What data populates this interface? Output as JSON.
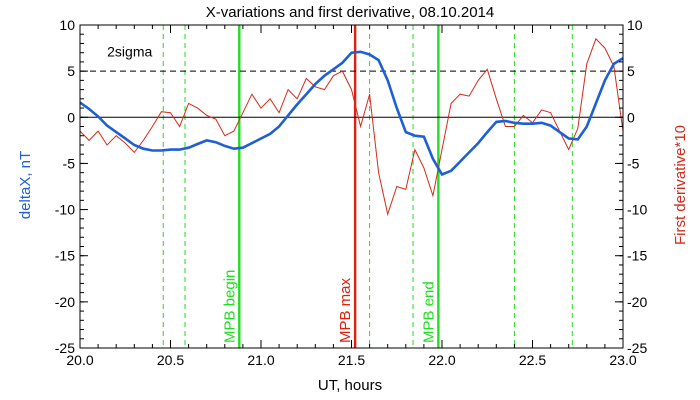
{
  "chart_data": {
    "type": "line",
    "title": "X-variations and first derivative, 08.10.2014",
    "xlabel": "UT, hours",
    "ylabel_left": "deltaX, nT",
    "ylabel_right": "First derivative*10",
    "xlim": [
      20.0,
      23.0
    ],
    "ylim": [
      -25,
      10
    ],
    "x_ticks": [
      "20.0",
      "20.5",
      "21.0",
      "21.5",
      "22.0",
      "22.5",
      "23.0"
    ],
    "y_ticks": [
      "-25",
      "-20",
      "-15",
      "-10",
      "-5",
      "0",
      "5",
      "10"
    ],
    "grid": false,
    "sigma_label": "2sigma",
    "sigma_level": 5,
    "zero_level": 0,
    "colors": {
      "deltaX": "#1e5fd6",
      "derivative": "#d42a1a",
      "mpb_green": "#22dd22",
      "mpb_red": "#e02010"
    },
    "series": [
      {
        "key": "deltaX",
        "axis": "left",
        "x": [
          20.0,
          20.05,
          20.1,
          20.15,
          20.2,
          20.25,
          20.3,
          20.35,
          20.4,
          20.45,
          20.5,
          20.55,
          20.6,
          20.65,
          20.7,
          20.75,
          20.8,
          20.85,
          20.9,
          20.95,
          21.0,
          21.05,
          21.1,
          21.15,
          21.2,
          21.25,
          21.3,
          21.35,
          21.4,
          21.45,
          21.5,
          21.55,
          21.6,
          21.65,
          21.7,
          21.75,
          21.8,
          21.85,
          21.9,
          21.95,
          22.0,
          22.05,
          22.1,
          22.15,
          22.2,
          22.25,
          22.3,
          22.35,
          22.4,
          22.45,
          22.5,
          22.55,
          22.6,
          22.65,
          22.7,
          22.75,
          22.8,
          22.85,
          22.9,
          22.95,
          23.0
        ],
        "y": [
          1.6,
          0.9,
          0.1,
          -0.9,
          -1.6,
          -2.3,
          -3.0,
          -3.4,
          -3.6,
          -3.6,
          -3.5,
          -3.5,
          -3.3,
          -2.9,
          -2.5,
          -2.7,
          -3.1,
          -3.4,
          -3.3,
          -2.8,
          -2.3,
          -1.8,
          -1.0,
          0.2,
          1.4,
          2.5,
          3.6,
          4.5,
          5.2,
          5.9,
          7.0,
          7.1,
          6.8,
          6.2,
          4.0,
          1.0,
          -1.6,
          -2.0,
          -2.1,
          -4.5,
          -6.2,
          -5.8,
          -4.8,
          -3.8,
          -2.8,
          -1.6,
          -0.5,
          -0.4,
          -0.6,
          -0.7,
          -0.7,
          -0.6,
          -0.9,
          -1.6,
          -2.3,
          -2.4,
          -1.0,
          1.5,
          4.0,
          5.8,
          6.4
        ]
      },
      {
        "key": "derivative",
        "axis": "right",
        "x": [
          20.0,
          20.05,
          20.1,
          20.15,
          20.2,
          20.25,
          20.3,
          20.35,
          20.4,
          20.45,
          20.5,
          20.55,
          20.6,
          20.65,
          20.7,
          20.75,
          20.8,
          20.85,
          20.9,
          20.95,
          21.0,
          21.05,
          21.1,
          21.15,
          21.2,
          21.25,
          21.3,
          21.35,
          21.4,
          21.45,
          21.5,
          21.55,
          21.6,
          21.65,
          21.7,
          21.75,
          21.8,
          21.85,
          21.9,
          21.95,
          22.0,
          22.05,
          22.1,
          22.15,
          22.2,
          22.25,
          22.3,
          22.35,
          22.4,
          22.45,
          22.5,
          22.55,
          22.6,
          22.65,
          22.7,
          22.75,
          22.8,
          22.85,
          22.9,
          22.95,
          23.0
        ],
        "y": [
          -1.5,
          -2.5,
          -1.5,
          -3.0,
          -2.0,
          -2.8,
          -3.8,
          -2.5,
          -1.0,
          0.6,
          0.5,
          -1.0,
          1.5,
          1.0,
          0.2,
          -0.2,
          -2.0,
          -1.5,
          0.5,
          2.5,
          1.0,
          2.0,
          0.5,
          3.0,
          2.0,
          4.2,
          3.3,
          3.0,
          4.5,
          5.0,
          3.0,
          -1.0,
          2.5,
          -6.0,
          -10.5,
          -7.5,
          -7.8,
          -3.5,
          -5.5,
          -8.5,
          -3.5,
          1.5,
          2.5,
          2.3,
          4.0,
          5.2,
          2.0,
          -1.0,
          -1.0,
          0.2,
          -0.6,
          0.8,
          0.5,
          -1.5,
          -3.5,
          -1.2,
          5.8,
          8.5,
          7.5,
          5.5,
          -1.5
        ]
      }
    ],
    "vertical_markers": [
      {
        "x": 20.46,
        "style": "dashed",
        "color": "#22dd22",
        "label": ""
      },
      {
        "x": 20.58,
        "style": "dashed",
        "color": "#22dd22",
        "label": ""
      },
      {
        "x": 20.88,
        "style": "solid",
        "color": "#22dd22",
        "label": "MPB begin"
      },
      {
        "x": 21.52,
        "style": "solid",
        "color": "#e02010",
        "label": "MPB max"
      },
      {
        "x": 21.6,
        "style": "dashed",
        "color": "#22dd22",
        "label": ""
      },
      {
        "x": 21.84,
        "style": "dashed",
        "color": "#22dd22",
        "label": ""
      },
      {
        "x": 21.98,
        "style": "solid",
        "color": "#22dd22",
        "label": "MPB end"
      },
      {
        "x": 22.4,
        "style": "dashed",
        "color": "#22dd22",
        "label": ""
      },
      {
        "x": 22.72,
        "style": "dashed",
        "color": "#22dd22",
        "label": ""
      }
    ]
  }
}
